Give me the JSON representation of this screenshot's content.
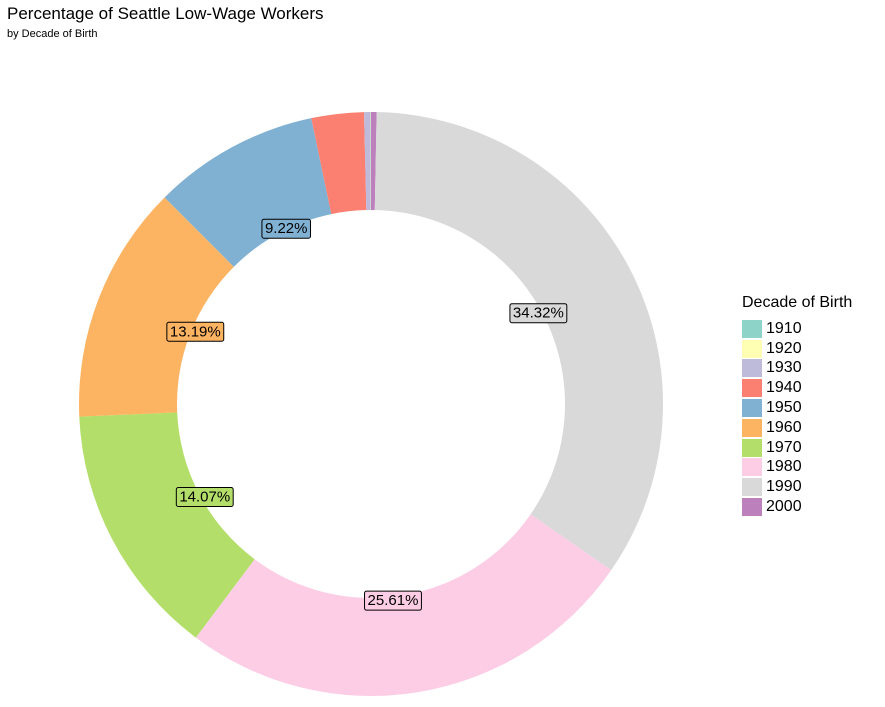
{
  "chart_data": {
    "type": "pie",
    "style": "donut",
    "title": "Percentage of Seattle Low-Wage Workers",
    "subtitle": "by Decade of Birth",
    "legend": {
      "title": "Decade of Birth",
      "position": "right"
    },
    "categories": [
      "1910",
      "1920",
      "1930",
      "1940",
      "1950",
      "1960",
      "1970",
      "1980",
      "1990",
      "2000"
    ],
    "values": [
      0.01,
      0.02,
      0.35,
      2.9,
      9.22,
      13.19,
      14.07,
      25.61,
      34.32,
      0.31
    ],
    "data_labels": [
      null,
      null,
      null,
      null,
      "9.22%",
      "13.19%",
      "14.07%",
      "25.61%",
      "34.32%",
      null
    ],
    "colors": [
      "#8DD3C7",
      "#FFFFB3",
      "#BEBADA",
      "#FB8072",
      "#80B1D3",
      "#FDB462",
      "#B3DE69",
      "#FCCDE5",
      "#D9D9D9",
      "#BC80BD"
    ]
  }
}
